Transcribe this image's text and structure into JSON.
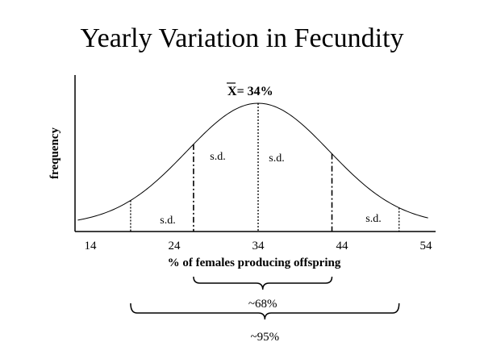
{
  "chart_data": {
    "type": "line",
    "title": "Yearly Variation in Fecundity",
    "xlabel": "% of females producing offspring",
    "ylabel": "frequency",
    "xlim": [
      14,
      54
    ],
    "x_ticks": [
      "14",
      "24",
      "34",
      "44",
      "54"
    ],
    "distribution": "normal",
    "mean": 34,
    "sd": 8.5,
    "mean_label_prefix": "X",
    "mean_label_suffix": "= 34%",
    "sd_label": "s.d.",
    "sd_markers": [
      {
        "x": 18.8,
        "style": "dotted"
      },
      {
        "x": 26.3,
        "style": "dashdot"
      },
      {
        "x": 34,
        "style": "dotted"
      },
      {
        "x": 42.8,
        "style": "dashdot"
      },
      {
        "x": 50.8,
        "style": "dotted"
      }
    ],
    "ranges": [
      {
        "label": "~68%",
        "from": 26.3,
        "to": 42.8
      },
      {
        "label": "~95%",
        "from": 18.8,
        "to": 50.8
      }
    ],
    "grid": false
  }
}
